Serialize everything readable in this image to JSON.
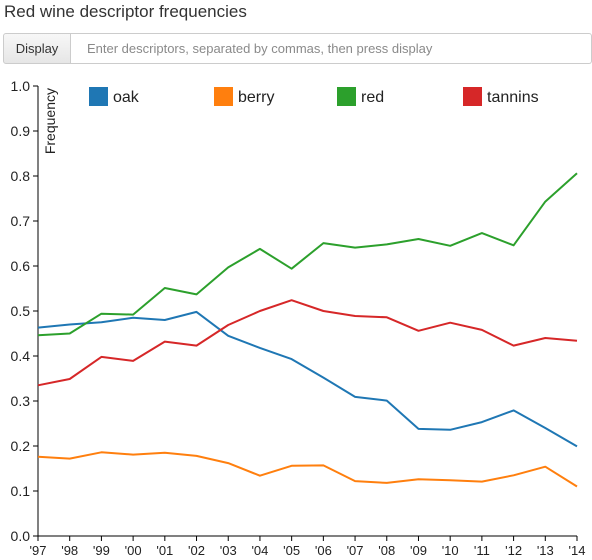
{
  "header": {
    "title": "Red wine descriptor frequencies"
  },
  "toolbar": {
    "display_label": "Display",
    "input_value": "",
    "input_placeholder": "Enter descriptors, separated by commas, then press display"
  },
  "chart_data": {
    "type": "line",
    "title": "",
    "xlabel": "",
    "ylabel": "Frequency",
    "ylim": [
      0,
      1.0
    ],
    "yticks": [
      0.0,
      0.1,
      0.2,
      0.3,
      0.4,
      0.5,
      0.6,
      0.7,
      0.8,
      0.9,
      1.0
    ],
    "ytick_labels": [
      "0.0",
      "0.1",
      "0.2",
      "0.3",
      "0.4",
      "0.5",
      "0.6",
      "0.7",
      "0.8",
      "0.9",
      "1.0"
    ],
    "x": [
      "'97",
      "'98",
      "'99",
      "'00",
      "'01",
      "'02",
      "'03",
      "'04",
      "'05",
      "'06",
      "'07",
      "'08",
      "'09",
      "'10",
      "'11",
      "'12",
      "'13",
      "'14"
    ],
    "grid": false,
    "legend_position": "top",
    "series": [
      {
        "name": "oak",
        "color": "#1f77b4",
        "values": [
          0.463,
          0.47,
          0.475,
          0.485,
          0.48,
          0.498,
          0.445,
          0.418,
          0.393,
          0.352,
          0.309,
          0.301,
          0.238,
          0.236,
          0.253,
          0.279,
          0.24,
          0.199
        ]
      },
      {
        "name": "berry",
        "color": "#ff7f0e",
        "values": [
          0.176,
          0.172,
          0.186,
          0.181,
          0.185,
          0.178,
          0.162,
          0.134,
          0.156,
          0.157,
          0.122,
          0.118,
          0.126,
          0.124,
          0.121,
          0.135,
          0.154,
          0.11
        ]
      },
      {
        "name": "red",
        "color": "#2ca02c",
        "values": [
          0.446,
          0.45,
          0.494,
          0.492,
          0.551,
          0.537,
          0.597,
          0.638,
          0.594,
          0.651,
          0.641,
          0.648,
          0.66,
          0.645,
          0.673,
          0.646,
          0.743,
          0.806
        ]
      },
      {
        "name": "tannins",
        "color": "#d62728",
        "values": [
          0.335,
          0.349,
          0.398,
          0.389,
          0.432,
          0.423,
          0.469,
          0.5,
          0.524,
          0.5,
          0.489,
          0.486,
          0.456,
          0.474,
          0.458,
          0.423,
          0.44,
          0.434
        ]
      }
    ]
  }
}
